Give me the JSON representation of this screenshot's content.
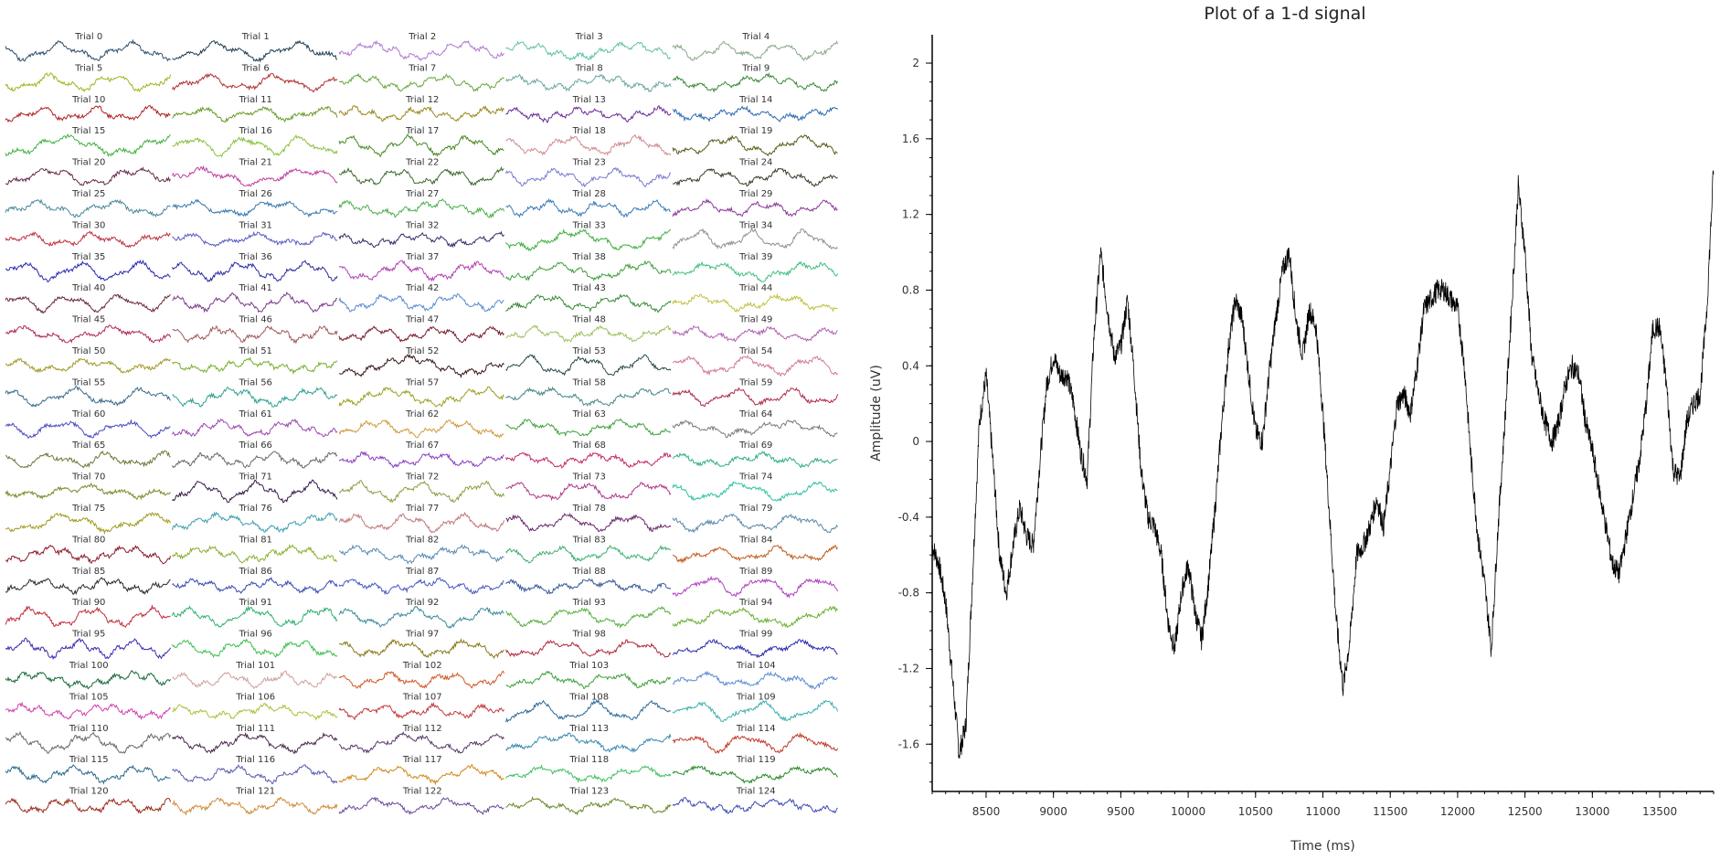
{
  "grid": {
    "rows": 25,
    "cols": 5,
    "trial_label_prefix": "Trial",
    "trials": [
      {
        "label": "Trial 0",
        "color": "#2f4f6f"
      },
      {
        "label": "Trial 1",
        "color": "#1e3e55"
      },
      {
        "label": "Trial 2",
        "color": "#b07ad0"
      },
      {
        "label": "Trial 3",
        "color": "#5fc0a8"
      },
      {
        "label": "Trial 4",
        "color": "#8aa88a"
      },
      {
        "label": "Trial 5",
        "color": "#9ab820"
      },
      {
        "label": "Trial 6",
        "color": "#b03030"
      },
      {
        "label": "Trial 7",
        "color": "#6aa840"
      },
      {
        "label": "Trial 8",
        "color": "#6aa8a0"
      },
      {
        "label": "Trial 9",
        "color": "#3a8a3a"
      },
      {
        "label": "Trial 10",
        "color": "#b02020"
      },
      {
        "label": "Trial 11",
        "color": "#6a9a2a"
      },
      {
        "label": "Trial 12",
        "color": "#9a8a20"
      },
      {
        "label": "Trial 13",
        "color": "#6a2a9a"
      },
      {
        "label": "Trial 14",
        "color": "#2a6ab0"
      },
      {
        "label": "Trial 15",
        "color": "#40b040"
      },
      {
        "label": "Trial 16",
        "color": "#8ac040"
      },
      {
        "label": "Trial 17",
        "color": "#4a8a2a"
      },
      {
        "label": "Trial 18",
        "color": "#d08a90"
      },
      {
        "label": "Trial 19",
        "color": "#5a5a1a"
      },
      {
        "label": "Trial 20",
        "color": "#6a2a4a"
      },
      {
        "label": "Trial 21",
        "color": "#c040a0"
      },
      {
        "label": "Trial 22",
        "color": "#3a6a2a"
      },
      {
        "label": "Trial 23",
        "color": "#7a7ad0"
      },
      {
        "label": "Trial 24",
        "color": "#3a3a2a"
      },
      {
        "label": "Trial 25",
        "color": "#4a8a9a"
      },
      {
        "label": "Trial 26",
        "color": "#3a7ab0"
      },
      {
        "label": "Trial 27",
        "color": "#50b050"
      },
      {
        "label": "Trial 28",
        "color": "#3a7ab8"
      },
      {
        "label": "Trial 29",
        "color": "#8a3a9a"
      },
      {
        "label": "Trial 30",
        "color": "#c03040"
      },
      {
        "label": "Trial 31",
        "color": "#5a5ac0"
      },
      {
        "label": "Trial 32",
        "color": "#3a2a6a"
      },
      {
        "label": "Trial 33",
        "color": "#40b040"
      },
      {
        "label": "Trial 34",
        "color": "#909090"
      },
      {
        "label": "Trial 35",
        "color": "#2a2ab0"
      },
      {
        "label": "Trial 36",
        "color": "#2a2aa0"
      },
      {
        "label": "Trial 37",
        "color": "#b040b0"
      },
      {
        "label": "Trial 38",
        "color": "#40a040"
      },
      {
        "label": "Trial 39",
        "color": "#40c080"
      },
      {
        "label": "Trial 40",
        "color": "#6a2a3a"
      },
      {
        "label": "Trial 41",
        "color": "#7a3a8a"
      },
      {
        "label": "Trial 42",
        "color": "#5a8ad0"
      },
      {
        "label": "Trial 43",
        "color": "#3a8a3a"
      },
      {
        "label": "Trial 44",
        "color": "#c0c040"
      },
      {
        "label": "Trial 45",
        "color": "#b02a5a"
      },
      {
        "label": "Trial 46",
        "color": "#a05a5a"
      },
      {
        "label": "Trial 47",
        "color": "#7a1a2a"
      },
      {
        "label": "Trial 48",
        "color": "#a0c060"
      },
      {
        "label": "Trial 49",
        "color": "#b060b0"
      },
      {
        "label": "Trial 50",
        "color": "#a09a2a"
      },
      {
        "label": "Trial 51",
        "color": "#7ab030"
      },
      {
        "label": "Trial 52",
        "color": "#3a1a1a"
      },
      {
        "label": "Trial 53",
        "color": "#2a4a4a"
      },
      {
        "label": "Trial 54",
        "color": "#d07a9a"
      },
      {
        "label": "Trial 55",
        "color": "#3a6a8a"
      },
      {
        "label": "Trial 56",
        "color": "#30a090"
      },
      {
        "label": "Trial 57",
        "color": "#9aa020"
      },
      {
        "label": "Trial 58",
        "color": "#4a8a8a"
      },
      {
        "label": "Trial 59",
        "color": "#b02a4a"
      },
      {
        "label": "Trial 60",
        "color": "#4a4ac0"
      },
      {
        "label": "Trial 61",
        "color": "#9a4ab0"
      },
      {
        "label": "Trial 62",
        "color": "#d09a40"
      },
      {
        "label": "Trial 63",
        "color": "#40a040"
      },
      {
        "label": "Trial 64",
        "color": "#7a7a7a"
      },
      {
        "label": "Trial 65",
        "color": "#6a7a3a"
      },
      {
        "label": "Trial 66",
        "color": "#6a6a6a"
      },
      {
        "label": "Trial 67",
        "color": "#8a40c0"
      },
      {
        "label": "Trial 68",
        "color": "#c02a6a"
      },
      {
        "label": "Trial 69",
        "color": "#30b080"
      },
      {
        "label": "Trial 70",
        "color": "#7a8a2a"
      },
      {
        "label": "Trial 71",
        "color": "#3a1a4a"
      },
      {
        "label": "Trial 72",
        "color": "#8aa040"
      },
      {
        "label": "Trial 73",
        "color": "#b03a8a"
      },
      {
        "label": "Trial 74",
        "color": "#30c0a0"
      },
      {
        "label": "Trial 75",
        "color": "#a09a20"
      },
      {
        "label": "Trial 76",
        "color": "#40a0b0"
      },
      {
        "label": "Trial 77",
        "color": "#c07a7a"
      },
      {
        "label": "Trial 78",
        "color": "#6a2a6a"
      },
      {
        "label": "Trial 79",
        "color": "#5a8aaa"
      },
      {
        "label": "Trial 80",
        "color": "#8a1a2a"
      },
      {
        "label": "Trial 81",
        "color": "#8ab030"
      },
      {
        "label": "Trial 82",
        "color": "#5a8ab0"
      },
      {
        "label": "Trial 83",
        "color": "#40b070"
      },
      {
        "label": "Trial 84",
        "color": "#c05a1a"
      },
      {
        "label": "Trial 85",
        "color": "#2a2a2a"
      },
      {
        "label": "Trial 86",
        "color": "#3a4ab0"
      },
      {
        "label": "Trial 87",
        "color": "#4a5ac0"
      },
      {
        "label": "Trial 88",
        "color": "#3a5a9a"
      },
      {
        "label": "Trial 89",
        "color": "#b040c0"
      },
      {
        "label": "Trial 90",
        "color": "#c02a3a"
      },
      {
        "label": "Trial 91",
        "color": "#30b070"
      },
      {
        "label": "Trial 92",
        "color": "#3a8a9a"
      },
      {
        "label": "Trial 93",
        "color": "#5ab040"
      },
      {
        "label": "Trial 94",
        "color": "#6ab030"
      },
      {
        "label": "Trial 95",
        "color": "#3a2ab0"
      },
      {
        "label": "Trial 96",
        "color": "#40c050"
      },
      {
        "label": "Trial 97",
        "color": "#8a7a1a"
      },
      {
        "label": "Trial 98",
        "color": "#b02a3a"
      },
      {
        "label": "Trial 99",
        "color": "#2a2ab0"
      },
      {
        "label": "Trial 100",
        "color": "#1a6a3a"
      },
      {
        "label": "Trial 101",
        "color": "#d0a0a0"
      },
      {
        "label": "Trial 102",
        "color": "#d05a2a"
      },
      {
        "label": "Trial 103",
        "color": "#40a040"
      },
      {
        "label": "Trial 104",
        "color": "#5a8ad0"
      },
      {
        "label": "Trial 105",
        "color": "#d040b0"
      },
      {
        "label": "Trial 106",
        "color": "#b0c040"
      },
      {
        "label": "Trial 107",
        "color": "#c03a3a"
      },
      {
        "label": "Trial 108",
        "color": "#2a6a9a"
      },
      {
        "label": "Trial 109",
        "color": "#40b0b0"
      },
      {
        "label": "Trial 110",
        "color": "#6a6a6a"
      },
      {
        "label": "Trial 111",
        "color": "#4a2a4a"
      },
      {
        "label": "Trial 112",
        "color": "#5a3a6a"
      },
      {
        "label": "Trial 113",
        "color": "#3a8ab0"
      },
      {
        "label": "Trial 114",
        "color": "#c03a2a"
      },
      {
        "label": "Trial 115",
        "color": "#2a6a8a"
      },
      {
        "label": "Trial 116",
        "color": "#5a5ab0"
      },
      {
        "label": "Trial 117",
        "color": "#d08a1a"
      },
      {
        "label": "Trial 118",
        "color": "#40c060"
      },
      {
        "label": "Trial 119",
        "color": "#2a8a2a"
      },
      {
        "label": "Trial 120",
        "color": "#9a2a1a"
      },
      {
        "label": "Trial 121",
        "color": "#d08a3a"
      },
      {
        "label": "Trial 122",
        "color": "#6a4a9a"
      },
      {
        "label": "Trial 123",
        "color": "#6a8a2a"
      },
      {
        "label": "Trial 124",
        "color": "#3a4ab0"
      }
    ]
  },
  "chart_data": {
    "type": "line",
    "title": "Plot of a 1-d signal",
    "xlabel": "Time (ms)",
    "ylabel": "Amplitude (uV)",
    "xlim": [
      8100,
      13900
    ],
    "ylim": [
      -1.85,
      2.15
    ],
    "x_ticks": [
      8500,
      9000,
      9500,
      10000,
      10500,
      11000,
      11500,
      12000,
      12500,
      13000,
      13500
    ],
    "y_ticks": [
      2,
      1.6,
      1.2,
      0.8,
      0.4,
      0,
      -0.4,
      -0.8,
      -1.2,
      -1.6
    ],
    "line_color": "#000000",
    "series": [
      {
        "x": [
          8100,
          8150,
          8200,
          8250,
          8300,
          8350,
          8400,
          8450,
          8500,
          8550,
          8600,
          8650,
          8700,
          8750,
          8800,
          8850,
          8900,
          8950,
          9000,
          9050,
          9100,
          9150,
          9200,
          9250,
          9300,
          9350,
          9400,
          9450,
          9500,
          9550,
          9600,
          9650,
          9700,
          9750,
          9800,
          9850,
          9900,
          9950,
          10000,
          10050,
          10100,
          10150,
          10200,
          10250,
          10300,
          10350,
          10400,
          10450,
          10500,
          10550,
          10600,
          10650,
          10700,
          10750,
          10800,
          10850,
          10900,
          10950,
          11000,
          11050,
          11100,
          11150,
          11200,
          11250,
          11300,
          11350,
          11400,
          11450,
          11500,
          11550,
          11600,
          11650,
          11700,
          11750,
          11800,
          11850,
          11900,
          11950,
          12000,
          12050,
          12100,
          12150,
          12200,
          12250,
          12300,
          12350,
          12400,
          12450,
          12500,
          12550,
          12600,
          12650,
          12700,
          12750,
          12800,
          12850,
          12900,
          12950,
          13000,
          13050,
          13100,
          13150,
          13200,
          13250,
          13300,
          13350,
          13400,
          13450,
          13500,
          13550,
          13600,
          13650,
          13700,
          13750,
          13800,
          13850,
          13900
        ],
        "y": [
          -0.55,
          -0.65,
          -0.85,
          -1.25,
          -1.65,
          -1.5,
          -0.7,
          0.1,
          0.35,
          -0.1,
          -0.6,
          -0.8,
          -0.55,
          -0.35,
          -0.5,
          -0.55,
          -0.1,
          0.3,
          0.45,
          0.35,
          0.35,
          0.2,
          -0.05,
          -0.2,
          0.55,
          1.0,
          0.7,
          0.45,
          0.5,
          0.75,
          0.35,
          -0.15,
          -0.4,
          -0.45,
          -0.6,
          -0.95,
          -1.1,
          -0.8,
          -0.65,
          -0.9,
          -1.05,
          -0.75,
          -0.35,
          0.1,
          0.5,
          0.75,
          0.65,
          0.35,
          0.05,
          0.0,
          0.35,
          0.65,
          0.9,
          1.0,
          0.65,
          0.45,
          0.7,
          0.6,
          0.15,
          -0.4,
          -0.95,
          -1.3,
          -1.05,
          -0.6,
          -0.55,
          -0.45,
          -0.3,
          -0.45,
          -0.15,
          0.2,
          0.25,
          0.15,
          0.4,
          0.7,
          0.75,
          0.8,
          0.8,
          0.75,
          0.7,
          0.4,
          -0.1,
          -0.5,
          -0.75,
          -1.1,
          -0.45,
          0.1,
          0.7,
          1.35,
          1.0,
          0.45,
          0.25,
          0.1,
          0.0,
          0.1,
          0.3,
          0.4,
          0.35,
          0.1,
          -0.05,
          -0.25,
          -0.45,
          -0.65,
          -0.7,
          -0.5,
          -0.3,
          -0.1,
          0.2,
          0.6,
          0.6,
          0.3,
          -0.15,
          -0.2,
          0.1,
          0.2,
          0.25,
          0.7,
          1.45
        ]
      }
    ]
  }
}
